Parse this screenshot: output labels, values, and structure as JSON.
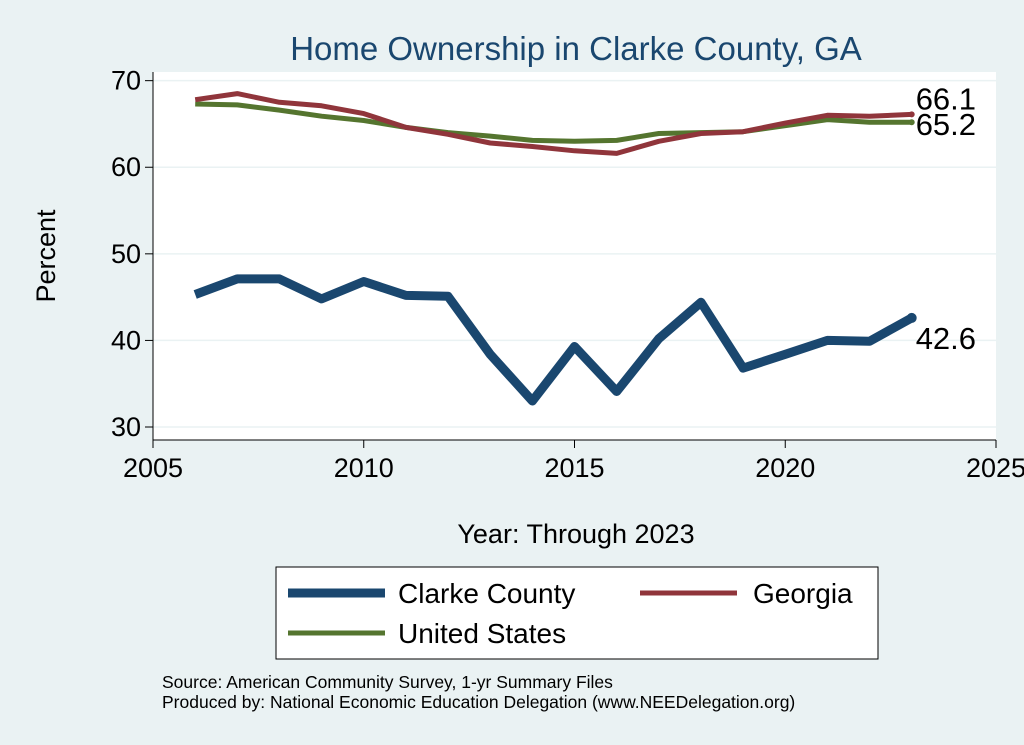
{
  "chart_data": {
    "type": "line",
    "title": "Home Ownership in Clarke County, GA",
    "xlabel": "Year: Through 2023",
    "ylabel": "Percent",
    "xlim": [
      2005,
      2025
    ],
    "ylim": [
      28.5,
      71
    ],
    "xticks": [
      2005,
      2010,
      2015,
      2020,
      2025
    ],
    "yticks": [
      30,
      40,
      50,
      60,
      70
    ],
    "grid": true,
    "series": [
      {
        "name": "Clarke County",
        "color": "#1a476f",
        "x": [
          2006,
          2007,
          2008,
          2009,
          2010,
          2011,
          2012,
          2013,
          2014,
          2015,
          2016,
          2017,
          2018,
          2019,
          2020,
          2021,
          2022,
          2023
        ],
        "values": [
          45.3,
          47.1,
          47.1,
          44.8,
          46.8,
          45.2,
          45.1,
          38.4,
          33.0,
          39.3,
          34.1,
          40.2,
          44.4,
          36.8,
          38.4,
          40.0,
          39.9,
          42.6
        ],
        "end_label": "42.6"
      },
      {
        "name": "Georgia",
        "color": "#90353b",
        "x": [
          2006,
          2007,
          2008,
          2009,
          2010,
          2011,
          2012,
          2013,
          2014,
          2015,
          2016,
          2017,
          2018,
          2019,
          2020,
          2021,
          2022,
          2023
        ],
        "values": [
          67.8,
          68.5,
          67.5,
          67.1,
          66.2,
          64.6,
          63.8,
          62.8,
          62.4,
          61.9,
          61.6,
          63.0,
          63.9,
          64.1,
          65.1,
          66.0,
          65.9,
          66.1
        ],
        "end_label": "66.1"
      },
      {
        "name": "United States",
        "color": "#55752f",
        "x": [
          2006,
          2007,
          2008,
          2009,
          2010,
          2011,
          2012,
          2013,
          2014,
          2015,
          2016,
          2017,
          2018,
          2019,
          2020,
          2021,
          2022,
          2023
        ],
        "values": [
          67.3,
          67.2,
          66.6,
          65.9,
          65.4,
          64.6,
          64.0,
          63.6,
          63.1,
          63.0,
          63.1,
          63.9,
          64.0,
          64.1,
          64.8,
          65.5,
          65.2,
          65.2
        ],
        "end_label": "65.2"
      }
    ],
    "legend": {
      "position": "bottom",
      "columns": 2
    },
    "notes": [
      "Source: American Community Survey, 1-yr Summary Files",
      "Produced by: National Economic Education Delegation (www.NEEDelegation.org)"
    ]
  }
}
